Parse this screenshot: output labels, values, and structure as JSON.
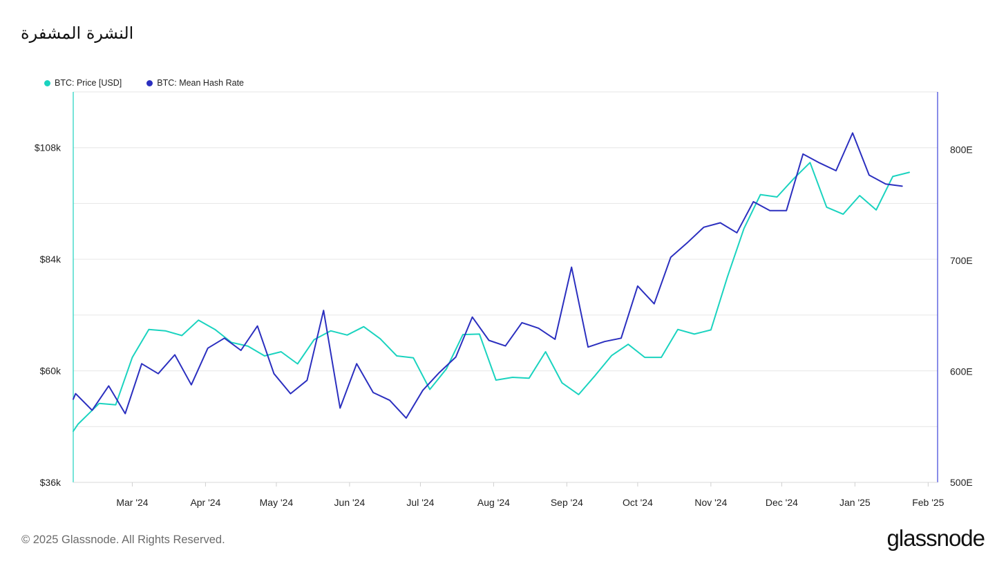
{
  "title": "النشرة المشفرة",
  "legend": [
    {
      "label": "BTC: Price [USD]",
      "color": "#1ad3bf"
    },
    {
      "label": "BTC: Mean Hash Rate",
      "color": "#2b2fbf"
    }
  ],
  "footer": {
    "copyright": "© 2025 Glassnode. All Rights Reserved.",
    "logo": "glassnode"
  },
  "chart_data": {
    "type": "line",
    "x_tick_labels": [
      "Mar '24",
      "Apr '24",
      "May '24",
      "Jun '24",
      "Jul '24",
      "Aug '24",
      "Sep '24",
      "Oct '24",
      "Nov '24",
      "Dec '24",
      "Jan '25",
      "Feb '25"
    ],
    "y_left": {
      "ticks": [
        "$36k",
        "$60k",
        "$84k",
        "$108k"
      ],
      "ylim": [
        36000,
        120000
      ]
    },
    "y_right": {
      "ticks": [
        "500E",
        "600E",
        "700E",
        "800E"
      ],
      "ylim": [
        500,
        852
      ]
    },
    "grid": true,
    "legend_position": "top-left",
    "x_range": [
      "2024-02-05",
      "2025-02-05"
    ],
    "series": [
      {
        "name": "BTC: Price [USD]",
        "axis": "left",
        "color": "#1ad3bf",
        "points": [
          [
            "2024-02-05",
            47000
          ],
          [
            "2024-02-07",
            48500
          ],
          [
            "2024-02-16",
            53000
          ],
          [
            "2024-02-23",
            52700
          ],
          [
            "2024-03-01",
            62900
          ],
          [
            "2024-03-08",
            68900
          ],
          [
            "2024-03-15",
            68600
          ],
          [
            "2024-03-22",
            67600
          ],
          [
            "2024-03-29",
            70900
          ],
          [
            "2024-04-05",
            68900
          ],
          [
            "2024-04-12",
            66100
          ],
          [
            "2024-04-19",
            65300
          ],
          [
            "2024-04-26",
            63200
          ],
          [
            "2024-05-03",
            64100
          ],
          [
            "2024-05-10",
            61500
          ],
          [
            "2024-05-17",
            66700
          ],
          [
            "2024-05-24",
            68600
          ],
          [
            "2024-05-31",
            67700
          ],
          [
            "2024-06-07",
            69500
          ],
          [
            "2024-06-14",
            66900
          ],
          [
            "2024-06-21",
            63200
          ],
          [
            "2024-06-28",
            62800
          ],
          [
            "2024-07-05",
            56000
          ],
          [
            "2024-07-12",
            60400
          ],
          [
            "2024-07-19",
            67800
          ],
          [
            "2024-07-26",
            67900
          ],
          [
            "2024-08-02",
            58000
          ],
          [
            "2024-08-09",
            58600
          ],
          [
            "2024-08-16",
            58400
          ],
          [
            "2024-08-23",
            64100
          ],
          [
            "2024-08-30",
            57400
          ],
          [
            "2024-09-06",
            54900
          ],
          [
            "2024-09-13",
            59000
          ],
          [
            "2024-09-20",
            63300
          ],
          [
            "2024-09-27",
            65700
          ],
          [
            "2024-10-04",
            62900
          ],
          [
            "2024-10-11",
            62900
          ],
          [
            "2024-10-18",
            68900
          ],
          [
            "2024-10-25",
            67900
          ],
          [
            "2024-11-01",
            68800
          ],
          [
            "2024-11-08",
            80200
          ],
          [
            "2024-11-15",
            90600
          ],
          [
            "2024-11-22",
            97900
          ],
          [
            "2024-11-29",
            97400
          ],
          [
            "2024-12-06",
            101300
          ],
          [
            "2024-12-13",
            104800
          ],
          [
            "2024-12-20",
            95200
          ],
          [
            "2024-12-27",
            93700
          ],
          [
            "2025-01-03",
            97700
          ],
          [
            "2025-01-10",
            94600
          ],
          [
            "2025-01-17",
            101800
          ],
          [
            "2025-01-24",
            102700
          ]
        ]
      },
      {
        "name": "BTC: Mean Hash Rate",
        "axis": "right",
        "color": "#2b2fbf",
        "points": [
          [
            "2024-02-05",
            575
          ],
          [
            "2024-02-06",
            580
          ],
          [
            "2024-02-13",
            565
          ],
          [
            "2024-02-20",
            587
          ],
          [
            "2024-02-27",
            562
          ],
          [
            "2024-03-05",
            607
          ],
          [
            "2024-03-12",
            598
          ],
          [
            "2024-03-19",
            615
          ],
          [
            "2024-03-26",
            588
          ],
          [
            "2024-04-02",
            621
          ],
          [
            "2024-04-09",
            630
          ],
          [
            "2024-04-16",
            619
          ],
          [
            "2024-04-23",
            641
          ],
          [
            "2024-04-30",
            598
          ],
          [
            "2024-05-07",
            580
          ],
          [
            "2024-05-14",
            592
          ],
          [
            "2024-05-21",
            655
          ],
          [
            "2024-05-28",
            567
          ],
          [
            "2024-06-04",
            607
          ],
          [
            "2024-06-11",
            581
          ],
          [
            "2024-06-18",
            574
          ],
          [
            "2024-06-25",
            558
          ],
          [
            "2024-07-02",
            583
          ],
          [
            "2024-07-09",
            599
          ],
          [
            "2024-07-16",
            613
          ],
          [
            "2024-07-23",
            649
          ],
          [
            "2024-07-30",
            628
          ],
          [
            "2024-08-06",
            623
          ],
          [
            "2024-08-13",
            644
          ],
          [
            "2024-08-20",
            639
          ],
          [
            "2024-08-27",
            629
          ],
          [
            "2024-09-03",
            694
          ],
          [
            "2024-09-10",
            622
          ],
          [
            "2024-09-17",
            627
          ],
          [
            "2024-09-24",
            630
          ],
          [
            "2024-10-01",
            677
          ],
          [
            "2024-10-08",
            661
          ],
          [
            "2024-10-15",
            703
          ],
          [
            "2024-10-22",
            716
          ],
          [
            "2024-10-29",
            730
          ],
          [
            "2024-11-05",
            734
          ],
          [
            "2024-11-12",
            725
          ],
          [
            "2024-11-19",
            753
          ],
          [
            "2024-11-26",
            745
          ],
          [
            "2024-12-03",
            745
          ],
          [
            "2024-12-10",
            796
          ],
          [
            "2024-12-17",
            788
          ],
          [
            "2024-12-24",
            781
          ],
          [
            "2024-12-31",
            815
          ],
          [
            "2025-01-07",
            777
          ],
          [
            "2025-01-14",
            769
          ],
          [
            "2025-01-21",
            767
          ]
        ]
      }
    ]
  }
}
